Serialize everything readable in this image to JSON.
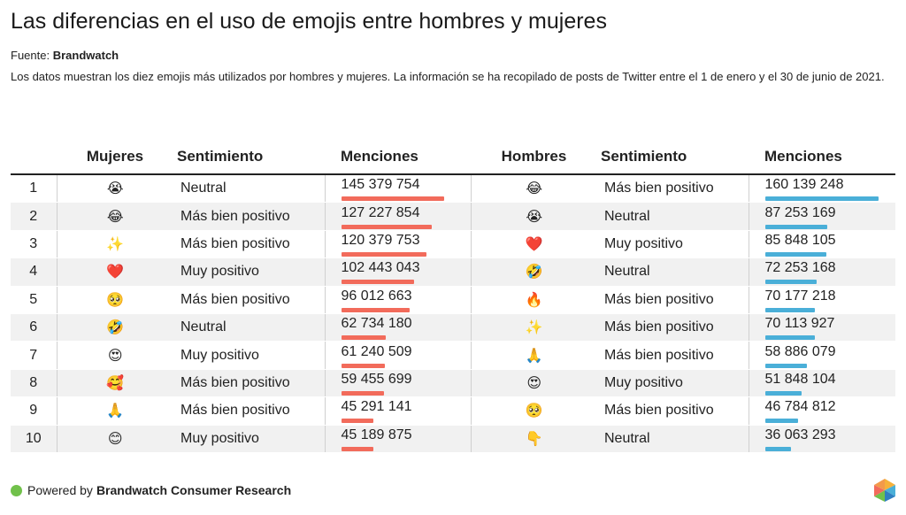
{
  "header": {
    "title": "Las diferencias en el uso de emojis entre hombres y mujeres",
    "source_label": "Fuente:",
    "source_name": "Brandwatch",
    "description": "Los datos muestran los diez emojis más utilizados por hombres y mujeres. La información se ha recopilado de posts de Twitter entre el 1 de enero y el 30 de junio de 2021."
  },
  "columns": {
    "rank": "",
    "women": "Mujeres",
    "sentiment_w": "Sentimiento",
    "mentions_w": "Menciones",
    "men": "Hombres",
    "sentiment_m": "Sentimiento",
    "mentions_m": "Menciones"
  },
  "colors": {
    "women_bar": "#f26b5b",
    "men_bar": "#4aafd8",
    "footer_dot": "#71c14b"
  },
  "chart_data": {
    "type": "table",
    "max_value": 160139248,
    "rows": [
      {
        "rank": "1",
        "w_emoji": "😭",
        "w_sent": "Neutral",
        "w_val": 145379754,
        "w_label": "145 379 754",
        "m_emoji": "😂",
        "m_sent": "Más bien positivo",
        "m_val": 160139248,
        "m_label": "160 139 248"
      },
      {
        "rank": "2",
        "w_emoji": "😂",
        "w_sent": "Más bien positivo",
        "w_val": 127227854,
        "w_label": "127 227 854",
        "m_emoji": "😭",
        "m_sent": "Neutral",
        "m_val": 87253169,
        "m_label": "87 253 169"
      },
      {
        "rank": "3",
        "w_emoji": "✨",
        "w_sent": "Más bien positivo",
        "w_val": 120379753,
        "w_label": "120 379 753",
        "m_emoji": "❤️",
        "m_sent": "Muy positivo",
        "m_val": 85848105,
        "m_label": "85 848 105"
      },
      {
        "rank": "4",
        "w_emoji": "❤️",
        "w_sent": "Muy positivo",
        "w_val": 102443043,
        "w_label": "102 443 043",
        "m_emoji": "🤣",
        "m_sent": "Neutral",
        "m_val": 72253168,
        "m_label": "72 253 168"
      },
      {
        "rank": "5",
        "w_emoji": "🥺",
        "w_sent": "Más bien positivo",
        "w_val": 96012663,
        "w_label": "96 012 663",
        "m_emoji": "🔥",
        "m_sent": "Más bien positivo",
        "m_val": 70177218,
        "m_label": "70 177 218"
      },
      {
        "rank": "6",
        "w_emoji": "🤣",
        "w_sent": "Neutral",
        "w_val": 62734180,
        "w_label": "62 734 180",
        "m_emoji": "✨",
        "m_sent": "Más bien positivo",
        "m_val": 70113927,
        "m_label": "70 113 927"
      },
      {
        "rank": "7",
        "w_emoji": "😍",
        "w_sent": "Muy positivo",
        "w_val": 61240509,
        "w_label": "61 240 509",
        "m_emoji": "🙏",
        "m_sent": "Más bien positivo",
        "m_val": 58886079,
        "m_label": "58 886 079"
      },
      {
        "rank": "8",
        "w_emoji": "🥰",
        "w_sent": "Más bien positivo",
        "w_val": 59455699,
        "w_label": "59 455 699",
        "m_emoji": "😍",
        "m_sent": "Muy positivo",
        "m_val": 51848104,
        "m_label": "51 848 104"
      },
      {
        "rank": "9",
        "w_emoji": "🙏",
        "w_sent": "Más bien positivo",
        "w_val": 45291141,
        "w_label": "45 291 141",
        "m_emoji": "🥺",
        "m_sent": "Más bien positivo",
        "m_val": 46784812,
        "m_label": "46 784 812"
      },
      {
        "rank": "10",
        "w_emoji": "😊",
        "w_sent": "Muy positivo",
        "w_val": 45189875,
        "w_label": "45 189 875",
        "m_emoji": "👇",
        "m_sent": "Neutral",
        "m_val": 36063293,
        "m_label": "36 063 293"
      }
    ]
  },
  "footer": {
    "powered_by": "Powered by",
    "brand": "Brandwatch Consumer Research"
  }
}
